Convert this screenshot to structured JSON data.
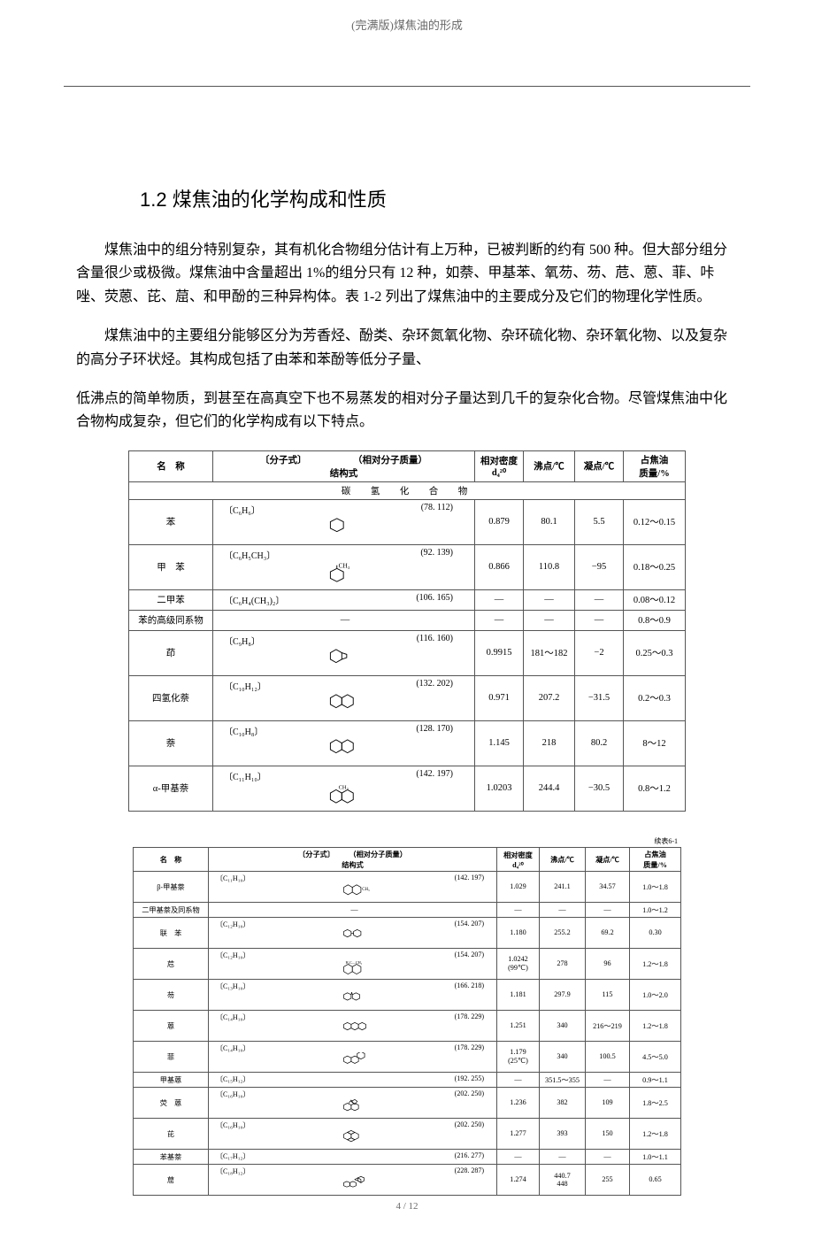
{
  "header": {
    "doc_title": "(完满版)煤焦油的形成"
  },
  "section": {
    "num_title": "1.2 煤焦油的化学构成和性质"
  },
  "paragraphs": {
    "p1": "煤焦油中的组分特别复杂，其有机化合物组分估计有上万种，已被判断的约有 500 种。但大部分组分含量很少或极微。煤焦油中含量超出 1%的组分只有 12 种，如萘、甲基苯、氧芴、芴、苊、蒽、菲、咔唑、荧蒽、芘、䓛、和甲酚的三种异构体。表 1-2 列出了煤焦油中的主要成分及它们的物理化学性质。",
    "p2": "煤焦油中的主要组分能够区分为芳香烃、酚类、杂环氮氧化物、杂环硫化物、杂环氧化物、以及复杂的高分子环状烃。其构成包括了由苯和苯酚等低分子量、",
    "p3": "低沸点的简单物质，到甚至在高真空下也不易蒸发的相对分子量达到几千的复杂化合物。尽管煤焦油中化合物构成复杂，但它们的化学构成有以下特点。"
  },
  "table1": {
    "headers": {
      "name": "名　称",
      "formula_struct": "〔分子式〕　　　　　　（相对分子质量）\n结构式",
      "density": "相对密度\nd₄²⁰",
      "bp": "沸点/℃",
      "mp": "凝点/℃",
      "pct": "占焦油\n质量/%"
    },
    "section_header": "碳　氢　化　合　物",
    "rows": [
      {
        "name": "苯",
        "formula": "〔C₆H₆〕",
        "mass": "(78. 112)",
        "glyph": "benzene",
        "density": "0.879",
        "bp": "80.1",
        "mp": "5.5",
        "pct": "0.12～0.15"
      },
      {
        "name": "甲　苯",
        "formula": "〔C₆H₅CH₃〕",
        "mass": "(92. 139)",
        "glyph": "toluene",
        "density": "0.866",
        "bp": "110.8",
        "mp": "−95",
        "pct": "0.18～0.25"
      },
      {
        "name": "二甲苯",
        "formula": "〔C₆H₄(CH₃)₂〕",
        "mass": "(106. 165)",
        "glyph": "",
        "small": true,
        "density": "—",
        "bp": "—",
        "mp": "—",
        "pct": "0.08～0.12"
      },
      {
        "name": "苯的高级同系物",
        "formula": "",
        "mass": "",
        "glyph": "",
        "small": true,
        "dash_struct": "—",
        "density": "—",
        "bp": "—",
        "mp": "—",
        "pct": "0.8～0.9"
      },
      {
        "name": "茚",
        "formula": "〔C₉H₈〕",
        "mass": "(116. 160)",
        "glyph": "indene",
        "density": "0.9915",
        "bp": "181～182",
        "mp": "−2",
        "pct": "0.25～0.3"
      },
      {
        "name": "四氢化萘",
        "formula": "〔C₁₀H₁₂〕",
        "mass": "(132. 202)",
        "glyph": "tetralin",
        "density": "0.971",
        "bp": "207.2",
        "mp": "−31.5",
        "pct": "0.2～0.3"
      },
      {
        "name": "萘",
        "formula": "〔C₁₀H₈〕",
        "mass": "(128. 170)",
        "glyph": "naphthalene",
        "density": "1.145",
        "bp": "218",
        "mp": "80.2",
        "pct": "8～12"
      },
      {
        "name": "α-甲基萘",
        "formula": "〔C₁₁H₁₀〕",
        "mass": "(142. 197)",
        "glyph": "a-mnaph",
        "density": "1.0203",
        "bp": "244.4",
        "mp": "−30.5",
        "pct": "0.8～1.2"
      }
    ]
  },
  "table2": {
    "cont": "续表6-1",
    "headers": {
      "name": "名　称",
      "formula_struct": "〔分子式〕　　　（相对分子质量）\n结构式",
      "density": "相对密度\nd₄²⁰",
      "bp": "沸点/℃",
      "mp": "凝点/℃",
      "pct": "占焦油\n质量/%"
    },
    "rows": [
      {
        "name": "β-甲基萘",
        "formula": "〔C₁₁H₁₀〕",
        "mass": "(142. 197)",
        "glyph": "b-mnaph",
        "density": "1.029",
        "bp": "241.1",
        "mp": "34.57",
        "pct": "1.0～1.8"
      },
      {
        "name": "二甲基萘及同系物",
        "formula": "",
        "mass": "",
        "glyph": "",
        "small": true,
        "dash_struct": "—",
        "density": "—",
        "bp": "—",
        "mp": "—",
        "pct": "1.0～1.2"
      },
      {
        "name": "联　苯",
        "formula": "〔C₁₂H₁₀〕",
        "mass": "(154. 207)",
        "glyph": "biphenyl",
        "density": "1.180",
        "bp": "255.2",
        "mp": "69.2",
        "pct": "0.30"
      },
      {
        "name": "苊",
        "formula": "〔C₁₂H₁₀〕",
        "mass": "(154. 207)",
        "glyph": "acenaph",
        "density": "1.0242\n(99℃)",
        "bp": "278",
        "mp": "96",
        "pct": "1.2～1.8"
      },
      {
        "name": "芴",
        "formula": "〔C₁₃H₁₀〕",
        "mass": "(166. 218)",
        "glyph": "fluorene",
        "density": "1.181",
        "bp": "297.9",
        "mp": "115",
        "pct": "1.0～2.0"
      },
      {
        "name": "蒽",
        "formula": "〔C₁₄H₁₀〕",
        "mass": "(178. 229)",
        "glyph": "anthracene",
        "density": "1.251",
        "bp": "340",
        "mp": "216～219",
        "pct": "1.2～1.8"
      },
      {
        "name": "菲",
        "formula": "〔C₁₄H₁₀〕",
        "mass": "(178. 229)",
        "glyph": "phenanthrene",
        "density": "1.179\n(25℃)",
        "bp": "340",
        "mp": "100.5",
        "pct": "4.5～5.0"
      },
      {
        "name": "甲基蒽",
        "formula": "〔C₁₅H₁₂〕",
        "mass": "(192. 255)",
        "glyph": "",
        "small": true,
        "density": "—",
        "bp": "351.5～355",
        "mp": "—",
        "pct": "0.9～1.1"
      },
      {
        "name": "荧　蒽",
        "formula": "〔C₁₆H₁₀〕",
        "mass": "(202. 250)",
        "glyph": "fluoranthene",
        "density": "1.236",
        "bp": "382",
        "mp": "109",
        "pct": "1.8～2.5"
      },
      {
        "name": "芘",
        "formula": "〔C₁₆H₁₀〕",
        "mass": "(202. 250)",
        "glyph": "pyrene",
        "density": "1.277",
        "bp": "393",
        "mp": "150",
        "pct": "1.2～1.8"
      },
      {
        "name": "苯基萘",
        "formula": "〔C₁₇H₁₂〕",
        "mass": "(216. 277)",
        "glyph": "",
        "small": true,
        "density": "—",
        "bp": "—",
        "mp": "—",
        "pct": "1.0～1.1"
      },
      {
        "name": "䓛",
        "formula": "〔C₁₈H₁₂〕",
        "mass": "(228. 287)",
        "glyph": "chrysene",
        "density": "1.274",
        "bp": "440.7\n448",
        "mp": "255",
        "pct": "0.65"
      }
    ]
  },
  "footer": {
    "pageno": "4 / 12"
  }
}
